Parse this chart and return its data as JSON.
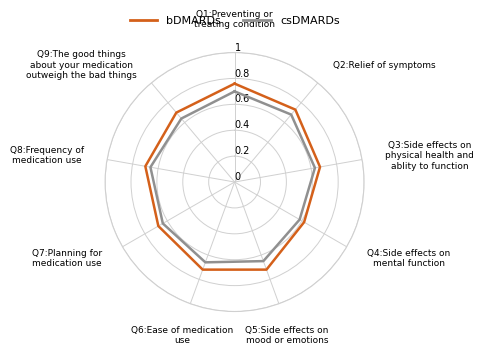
{
  "categories": [
    "Q1:Preventing or\ntreating condition",
    "Q2:Relief of symptoms",
    "Q3:Side effects on\nphysical health and\nablity to function",
    "Q4:Side effects on\nmental function",
    "Q5:Side effects on\nmood or emotions",
    "Q6:Ease of medication\nuse",
    "Q7:Planning for\nmedication use",
    "Q8:Frequency of\nmedication use",
    "Q9:The good things\nabout your medication\noutweigh the bad things"
  ],
  "bDMARDs": [
    0.76,
    0.73,
    0.67,
    0.62,
    0.72,
    0.72,
    0.68,
    0.7,
    0.7
  ],
  "csDMARDs": [
    0.7,
    0.68,
    0.63,
    0.58,
    0.65,
    0.66,
    0.64,
    0.66,
    0.64
  ],
  "bDMARDs_color": "#D4601A",
  "csDMARDs_color": "#909090",
  "ylim_max": 1.0,
  "yticks": [
    0,
    0.2,
    0.4,
    0.6,
    0.8,
    1.0
  ],
  "ytick_labels": [
    "0",
    "0.2",
    "0.4",
    "0.6",
    "0.8",
    "1"
  ],
  "legend_bDMARDs": "bDMARDs",
  "legend_csDMARDs": "csDMARDs",
  "background_color": "#ffffff",
  "grid_color": "#d0d0d0",
  "line_width": 1.8,
  "label_fontsize": 6.5,
  "ytick_fontsize": 7.0
}
